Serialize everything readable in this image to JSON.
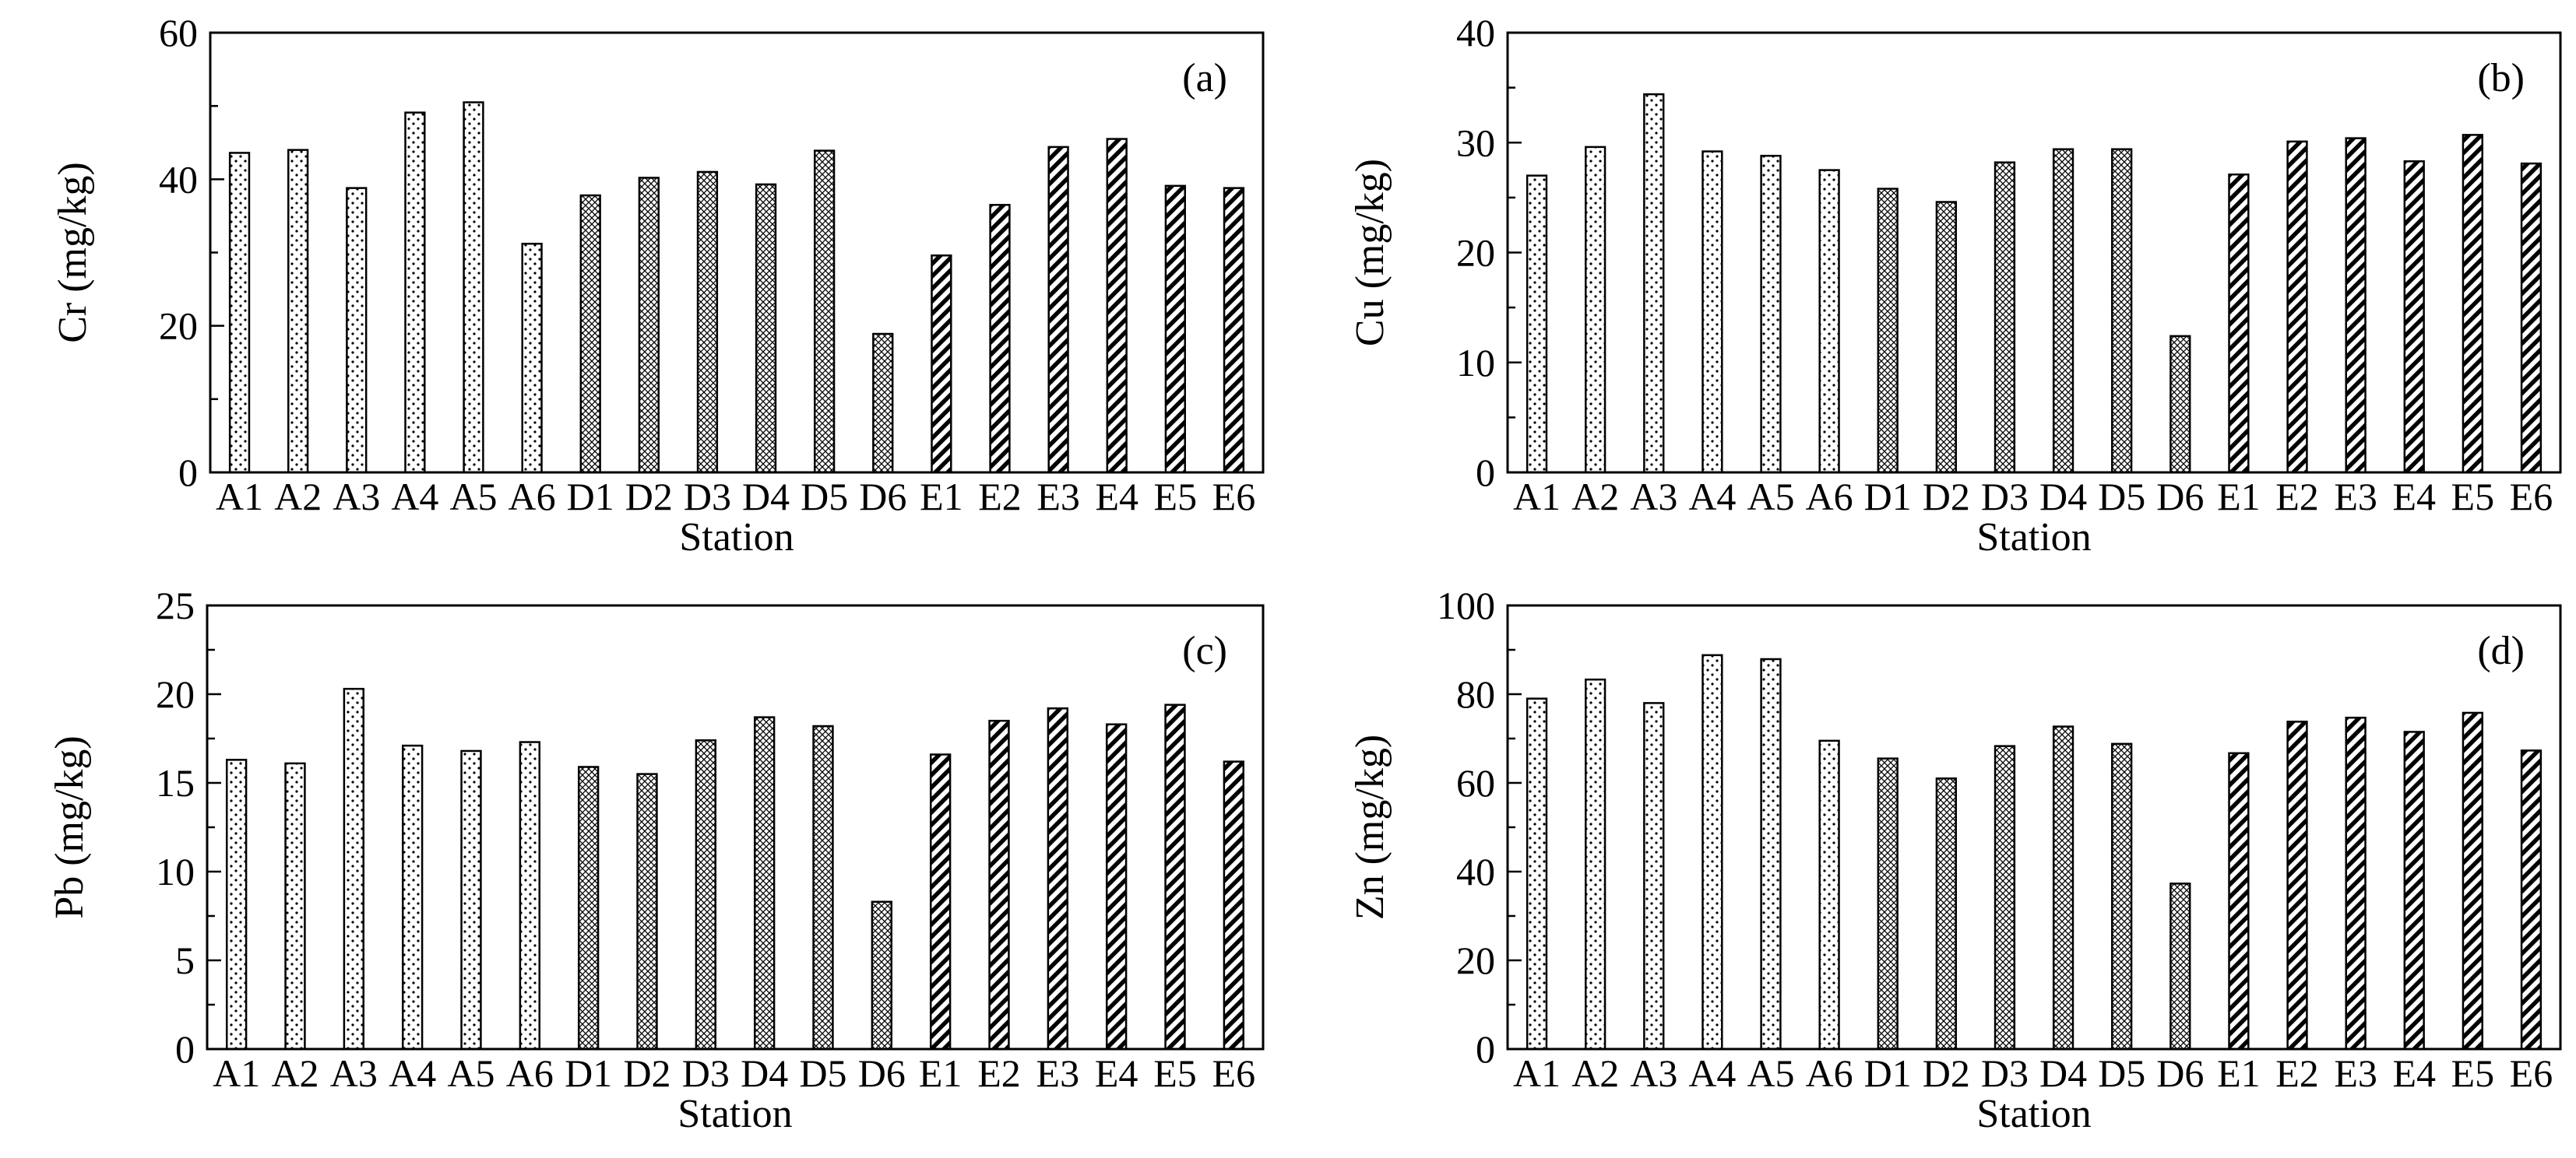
{
  "figure": {
    "xlabel": "Station",
    "categories": [
      "A1",
      "A2",
      "A3",
      "A4",
      "A5",
      "A6",
      "D1",
      "D2",
      "D3",
      "D4",
      "D5",
      "D6",
      "E1",
      "E2",
      "E3",
      "E4",
      "E5",
      "E6"
    ]
  },
  "chart_data": [
    {
      "type": "bar",
      "panel": "(a)",
      "ylabel": "Cr (mg/kg)",
      "xlabel": "Station",
      "ylim": [
        0,
        60
      ],
      "yticks": [
        0,
        20,
        40,
        60
      ],
      "categories": [
        "A1",
        "A2",
        "A3",
        "A4",
        "A5",
        "A6",
        "D1",
        "D2",
        "D3",
        "D4",
        "D5",
        "D6",
        "E1",
        "E2",
        "E3",
        "E4",
        "E5",
        "E6"
      ],
      "values": [
        43.6,
        44.0,
        38.8,
        49.1,
        50.5,
        31.2,
        37.8,
        40.2,
        41.0,
        39.3,
        43.9,
        18.9,
        29.6,
        36.5,
        44.4,
        45.5,
        39.1,
        38.8
      ]
    },
    {
      "type": "bar",
      "panel": "(b)",
      "ylabel": "Cu (mg/kg)",
      "xlabel": "Station",
      "ylim": [
        0,
        40
      ],
      "yticks": [
        0,
        10,
        20,
        30,
        40
      ],
      "categories": [
        "A1",
        "A2",
        "A3",
        "A4",
        "A5",
        "A6",
        "D1",
        "D2",
        "D3",
        "D4",
        "D5",
        "D6",
        "E1",
        "E2",
        "E3",
        "E4",
        "E5",
        "E6"
      ],
      "values": [
        27.0,
        29.6,
        34.4,
        29.2,
        28.8,
        27.5,
        25.8,
        24.6,
        28.2,
        29.4,
        29.4,
        12.4,
        27.1,
        30.1,
        30.4,
        28.3,
        30.7,
        28.1
      ]
    },
    {
      "type": "bar",
      "panel": "(c)",
      "ylabel": "Pb (mg/kg)",
      "xlabel": "Station",
      "ylim": [
        0,
        25
      ],
      "yticks": [
        0,
        5,
        10,
        15,
        20,
        25
      ],
      "categories": [
        "A1",
        "A2",
        "A3",
        "A4",
        "A5",
        "A6",
        "D1",
        "D2",
        "D3",
        "D4",
        "D5",
        "D6",
        "E1",
        "E2",
        "E3",
        "E4",
        "E5",
        "E6"
      ],
      "values": [
        16.3,
        16.1,
        20.3,
        17.1,
        16.8,
        17.3,
        15.9,
        15.5,
        17.4,
        18.7,
        18.2,
        8.3,
        16.6,
        18.5,
        19.2,
        18.3,
        19.4,
        16.2
      ]
    },
    {
      "type": "bar",
      "panel": "(d)",
      "ylabel": "Zn (mg/kg)",
      "xlabel": "Station",
      "ylim": [
        0,
        100
      ],
      "yticks": [
        0,
        20,
        40,
        60,
        80,
        100
      ],
      "categories": [
        "A1",
        "A2",
        "A3",
        "A4",
        "A5",
        "A6",
        "D1",
        "D2",
        "D3",
        "D4",
        "D5",
        "D6",
        "E1",
        "E2",
        "E3",
        "E4",
        "E5",
        "E6"
      ],
      "values": [
        79.0,
        83.3,
        78.0,
        88.8,
        87.9,
        69.5,
        65.5,
        61.0,
        68.3,
        72.7,
        68.8,
        37.3,
        66.7,
        73.8,
        74.7,
        71.5,
        75.8,
        67.3
      ]
    }
  ]
}
